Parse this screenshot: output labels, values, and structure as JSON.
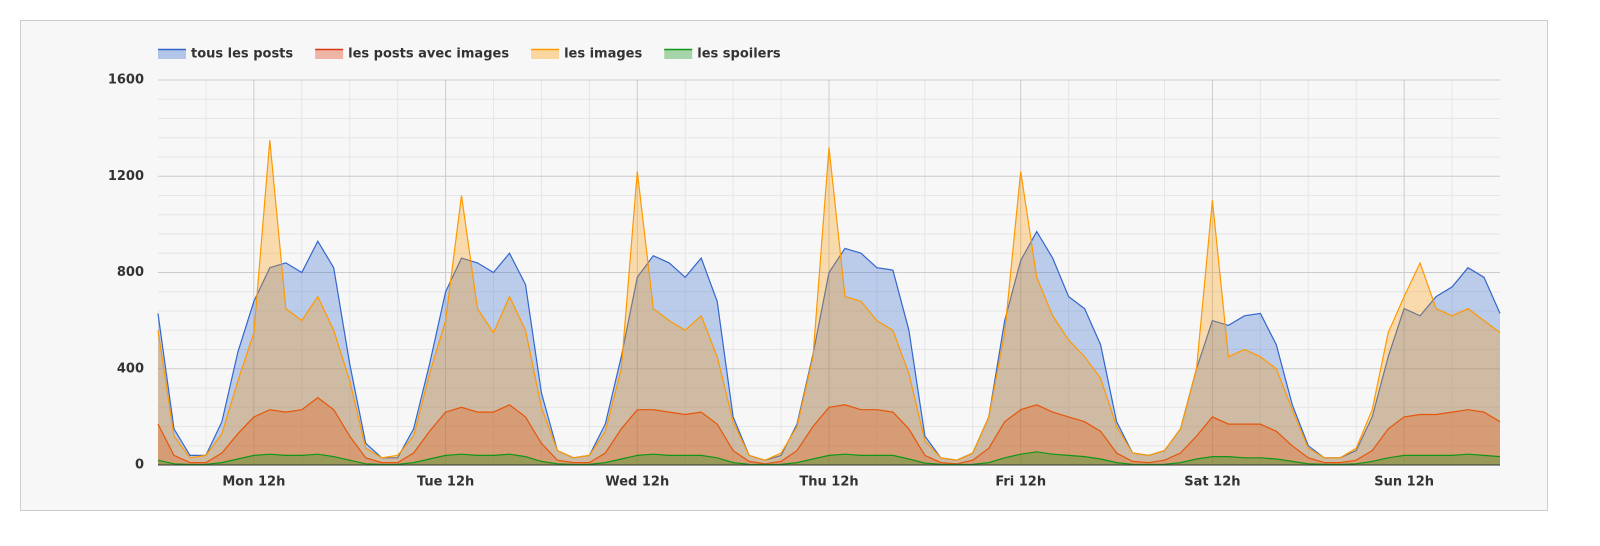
{
  "chart_data": {
    "type": "area",
    "x": [
      0,
      2,
      4,
      6,
      8,
      10,
      12,
      14,
      16,
      18,
      20,
      22,
      24,
      26,
      28,
      30,
      32,
      34,
      36,
      38,
      40,
      42,
      44,
      46,
      48,
      50,
      52,
      54,
      56,
      58,
      60,
      62,
      64,
      66,
      68,
      70,
      72,
      74,
      76,
      78,
      80,
      82,
      84,
      86,
      88,
      90,
      92,
      94,
      96,
      98,
      100,
      102,
      104,
      106,
      108,
      110,
      112,
      114,
      116,
      118,
      120,
      122,
      124,
      126,
      128,
      130,
      132,
      134,
      136,
      138,
      140,
      142,
      144,
      146,
      148,
      150,
      152,
      154,
      156,
      158,
      160,
      162,
      164,
      166,
      168
    ],
    "xlim": [
      0,
      168
    ],
    "xticks": [
      {
        "value": 12,
        "label": "Mon 12h"
      },
      {
        "value": 36,
        "label": "Tue 12h"
      },
      {
        "value": 60,
        "label": "Wed 12h"
      },
      {
        "value": 84,
        "label": "Thu 12h"
      },
      {
        "value": 108,
        "label": "Fri 12h"
      },
      {
        "value": 132,
        "label": "Sat 12h"
      },
      {
        "value": 156,
        "label": "Sun 12h"
      }
    ],
    "x_minor_ticks": [
      6,
      18,
      24,
      30,
      42,
      48,
      54,
      66,
      72,
      78,
      90,
      96,
      102,
      114,
      120,
      126,
      138,
      144,
      150,
      162
    ],
    "ylim": [
      0,
      1600
    ],
    "yticks": [
      0,
      400,
      800,
      1200,
      1600
    ],
    "y_minor_ticks": [
      80,
      160,
      240,
      320,
      480,
      560,
      640,
      720,
      880,
      960,
      1040,
      1120,
      1280,
      1360,
      1440,
      1520
    ],
    "grid": true,
    "legend": "top-left",
    "series": [
      {
        "name": "tous les posts",
        "color": "#3366cc",
        "values": [
          630,
          150,
          40,
          40,
          180,
          470,
          680,
          820,
          840,
          800,
          930,
          820,
          420,
          90,
          30,
          30,
          150,
          420,
          720,
          860,
          840,
          800,
          880,
          750,
          300,
          60,
          30,
          40,
          170,
          450,
          780,
          870,
          840,
          780,
          860,
          680,
          200,
          40,
          20,
          40,
          170,
          460,
          800,
          900,
          880,
          820,
          810,
          560,
          120,
          30,
          20,
          50,
          200,
          600,
          850,
          970,
          860,
          700,
          650,
          500,
          180,
          50,
          40,
          60,
          150,
          400,
          600,
          580,
          620,
          630,
          500,
          250,
          80,
          30,
          30,
          60,
          200,
          450,
          650,
          620,
          700,
          740,
          820,
          780,
          630
        ]
      },
      {
        "name": "les posts avec images",
        "color": "#dc3912",
        "values": [
          170,
          40,
          10,
          10,
          50,
          130,
          200,
          230,
          220,
          230,
          280,
          230,
          120,
          30,
          10,
          10,
          50,
          140,
          220,
          240,
          220,
          220,
          250,
          200,
          90,
          20,
          10,
          10,
          50,
          150,
          230,
          230,
          220,
          210,
          220,
          170,
          60,
          15,
          5,
          15,
          60,
          160,
          240,
          250,
          230,
          230,
          220,
          150,
          40,
          10,
          5,
          20,
          70,
          180,
          230,
          250,
          220,
          200,
          180,
          140,
          50,
          15,
          10,
          20,
          50,
          120,
          200,
          170,
          170,
          170,
          140,
          80,
          30,
          10,
          10,
          20,
          60,
          150,
          200,
          210,
          210,
          220,
          230,
          220,
          180
        ]
      },
      {
        "name": "les images",
        "color": "#ff9900",
        "values": [
          560,
          120,
          30,
          40,
          130,
          350,
          550,
          1350,
          650,
          600,
          700,
          560,
          350,
          70,
          30,
          40,
          120,
          380,
          600,
          1120,
          650,
          550,
          700,
          560,
          240,
          60,
          30,
          40,
          140,
          400,
          1220,
          650,
          600,
          560,
          620,
          450,
          180,
          40,
          20,
          50,
          160,
          450,
          1320,
          700,
          680,
          600,
          560,
          380,
          100,
          30,
          20,
          50,
          200,
          550,
          1220,
          780,
          620,
          520,
          450,
          360,
          160,
          50,
          40,
          60,
          150,
          400,
          1100,
          450,
          480,
          450,
          400,
          230,
          70,
          30,
          30,
          70,
          230,
          550,
          700,
          840,
          650,
          620,
          650,
          600,
          550
        ]
      },
      {
        "name": "les spoilers",
        "color": "#109618",
        "values": [
          20,
          5,
          2,
          3,
          10,
          25,
          40,
          45,
          40,
          40,
          45,
          35,
          20,
          5,
          2,
          3,
          10,
          25,
          40,
          45,
          40,
          40,
          45,
          35,
          15,
          5,
          2,
          3,
          10,
          25,
          40,
          45,
          40,
          40,
          40,
          30,
          10,
          3,
          2,
          3,
          10,
          25,
          40,
          45,
          40,
          40,
          40,
          25,
          8,
          3,
          2,
          3,
          10,
          30,
          45,
          55,
          45,
          40,
          35,
          25,
          10,
          3,
          2,
          3,
          10,
          25,
          35,
          35,
          30,
          30,
          25,
          15,
          5,
          3,
          2,
          5,
          15,
          30,
          40,
          40,
          40,
          40,
          45,
          40,
          35
        ]
      }
    ]
  }
}
